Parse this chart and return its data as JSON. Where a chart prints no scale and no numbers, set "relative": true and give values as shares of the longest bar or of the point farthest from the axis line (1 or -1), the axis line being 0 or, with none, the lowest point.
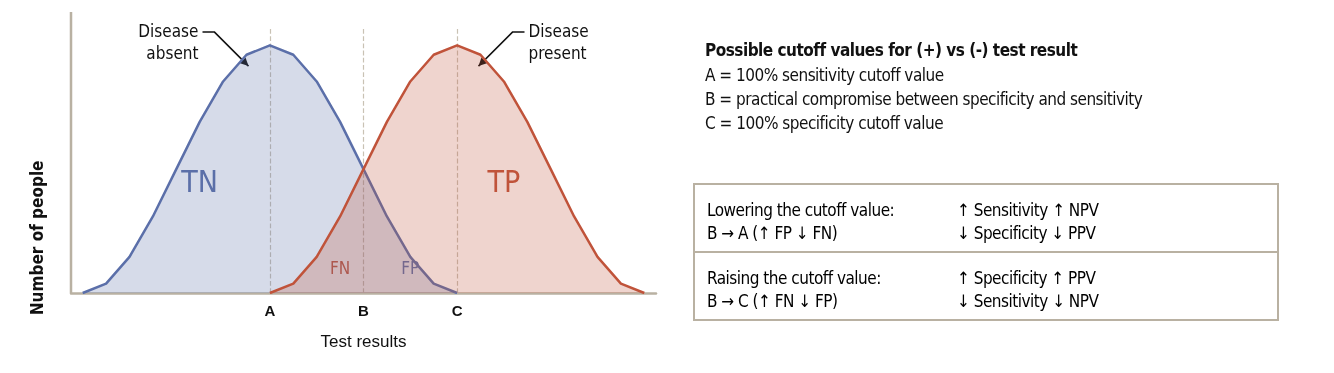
{
  "chart_data": {
    "type": "area",
    "relative": true,
    "xlabel": "Test results",
    "ylabel": "Number of people",
    "categories": [
      null,
      null,
      null,
      null,
      null,
      null,
      null,
      null,
      "A",
      null,
      null,
      null,
      "B",
      null,
      null,
      null,
      "C",
      null,
      null,
      null,
      null,
      null,
      null,
      null,
      null
    ],
    "series": [
      {
        "name": "Disease absent",
        "color": "#5b6fa9",
        "values": [
          0,
          0.038,
          0.146,
          0.309,
          0.5,
          0.691,
          0.854,
          0.962,
          1,
          0.962,
          0.854,
          0.691,
          0.5,
          0.309,
          0.146,
          0.038,
          0,
          null,
          null,
          null,
          null,
          null,
          null,
          null,
          null
        ]
      },
      {
        "name": "Disease present",
        "color": "#c0533a",
        "values": [
          null,
          null,
          null,
          null,
          null,
          null,
          null,
          null,
          0,
          0.038,
          0.146,
          0.309,
          0.5,
          0.691,
          0.854,
          0.962,
          1,
          0.962,
          0.854,
          0.691,
          0.5,
          0.309,
          0.146,
          0.038,
          0
        ]
      }
    ],
    "ref_lines": [
      {
        "axis": "x",
        "value": "A",
        "color": "#c9c2b4",
        "line_style": "dashed"
      },
      {
        "axis": "x",
        "value": "B",
        "color": "#c9c2b4",
        "line_style": "dashed"
      },
      {
        "axis": "x",
        "value": "C",
        "color": "#c9c2b4",
        "line_style": "dashed"
      }
    ],
    "legend": false,
    "annotations": [
      "TN",
      "FN",
      "FP",
      "TP",
      "Possible cutoff values for (+) vs (-) test result",
      "A  =  100% sensitivity cutoff value",
      "B  =  practical compromise between specificity and sensitivity",
      "C  =  100% specificity cutoff value",
      "Lowering the cutoff value:",
      "↑ Sensitivity ↑ NPV",
      "B → A (↑ FP ↓ FN)",
      "↓ Specificity ↓ PPV",
      "Raising the cutoff value:",
      "↑ Specificity ↑ PPV",
      "B → C (↑ FN ↓ FP)",
      "↓ Sensitivity ↓ NPV"
    ]
  }
}
